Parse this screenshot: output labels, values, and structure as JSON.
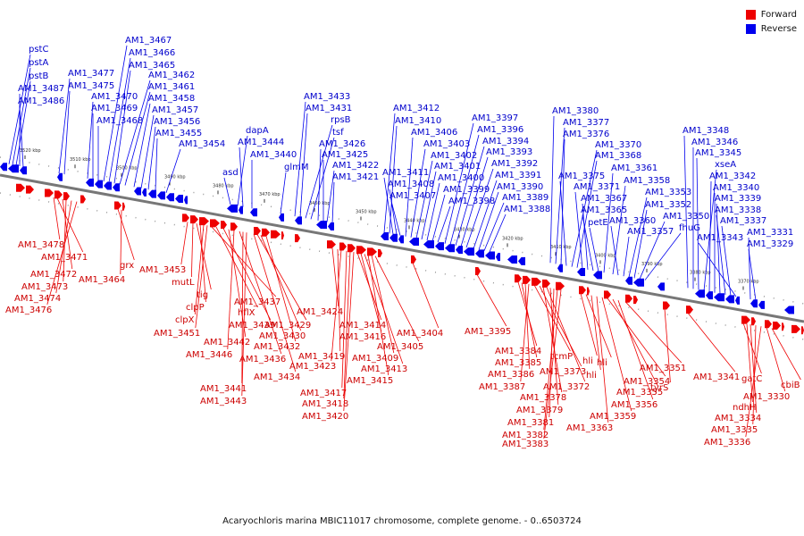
{
  "legend": {
    "forward": "Forward",
    "reverse": "Reverse"
  },
  "colors": {
    "forward": "#ee0000",
    "reverse": "#0000ee",
    "axis": "#777777"
  },
  "caption": "Acaryochloris marina MBIC11017 chromosome, complete genome. - 0..6503724",
  "ticks": [
    "3520 kbp",
    "3510 kbp",
    "3500 kbp",
    "3490 kbp",
    "3480 kbp",
    "3470 kbp",
    "3460 kbp",
    "3450 kbp",
    "3440 kbp",
    "3430 kbp",
    "3420 kbp",
    "3410 kbp",
    "3400 kbp",
    "3390 kbp",
    "3380 kbp",
    "3370 kbp"
  ],
  "reverse_labels": [
    "pstC",
    "pstA",
    "pstB",
    "AM1_3487",
    "AM1_3486",
    "AM1_3477",
    "AM1_3475",
    "AM1_3470",
    "AM1_3469",
    "AM1_3468",
    "AM1_3467",
    "AM1_3466",
    "AM1_3465",
    "AM1_3462",
    "AM1_3461",
    "AM1_3458",
    "AM1_3457",
    "AM1_3456",
    "AM1_3455",
    "AM1_3454",
    "asd",
    "dapA",
    "AM1_3444",
    "AM1_3440",
    "glmM",
    "AM1_3433",
    "AM1_3431",
    "rpsB",
    "tsf",
    "AM1_3426",
    "AM1_3425",
    "AM1_3422",
    "AM1_3421",
    "AM1_3412",
    "AM1_3410",
    "AM1_3411",
    "AM1_3408",
    "AM1_3407",
    "AM1_3406",
    "AM1_3403",
    "AM1_3402",
    "AM1_3401",
    "AM1_3400",
    "AM1_3399",
    "AM1_3398",
    "AM1_3397",
    "AM1_3396",
    "AM1_3394",
    "AM1_3393",
    "AM1_3392",
    "AM1_3391",
    "AM1_3390",
    "AM1_3389",
    "AM1_3388",
    "AM1_3380",
    "AM1_3377",
    "AM1_3376",
    "AM1_3375",
    "AM1_3370",
    "AM1_3368",
    "AM1_3371",
    "AM1_3367",
    "AM1_3365",
    "petE",
    "AM1_3361",
    "AM1_3358",
    "AM1_3360",
    "AM1_3357",
    "AM1_3353",
    "AM1_3352",
    "AM1_3350",
    "fhuG",
    "AM1_3348",
    "AM1_3346",
    "AM1_3345",
    "xseA",
    "AM1_3342",
    "AM1_3340",
    "AM1_3339",
    "AM1_3338",
    "AM1_3337",
    "AM1_3343",
    "AM1_3331",
    "AM1_3329"
  ],
  "forward_labels": [
    "AM1_3478",
    "AM1_3471",
    "AM1_3472",
    "AM1_3473",
    "AM1_3474",
    "AM1_3476",
    "grx",
    "AM1_3464",
    "AM1_3453",
    "mutL",
    "tig",
    "clpP",
    "clpX",
    "AM1_3451",
    "AM1_3437",
    "hflX",
    "AM1_3439",
    "AM1_3442",
    "AM1_3446",
    "AM1_3436",
    "AM1_3441",
    "AM1_3443",
    "AM1_3434",
    "AM1_3429",
    "AM1_3430",
    "AM1_3432",
    "AM1_3424",
    "AM1_3419",
    "AM1_3423",
    "AM1_3417",
    "AM1_3418",
    "AM1_3420",
    "AM1_3414",
    "AM1_3416",
    "AM1_3413",
    "AM1_3415",
    "AM1_3409",
    "AM1_3405",
    "AM1_3404",
    "AM1_3395",
    "AM1_3384",
    "AM1_3385",
    "AM1_3386",
    "AM1_3387",
    "tcmP",
    "AM1_3373",
    "AM1_3378",
    "AM1_3372",
    "AM1_3379",
    "AM1_3381",
    "AM1_3382",
    "AM1_3383",
    "hli",
    "hli",
    "hli",
    "AM1_3363",
    "AM1_3359",
    "AM1_3354",
    "AM1_3355",
    "AM1_3356",
    "AM1_3351",
    "tyrS",
    "AM1_3341",
    "gatC",
    "ndhH",
    "AM1_3334",
    "AM1_3335",
    "AM1_3336",
    "AM1_3330",
    "cbiB"
  ]
}
